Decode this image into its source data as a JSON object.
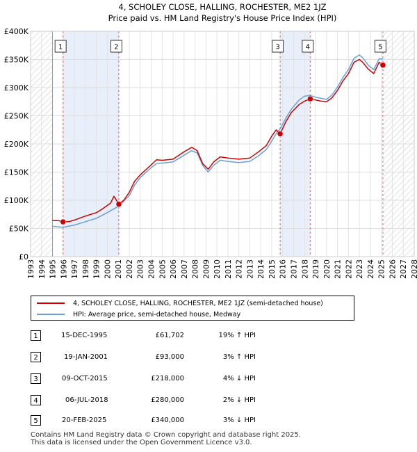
{
  "chart_data": {
    "type": "line",
    "title": "4, SCHOLEY CLOSE, HALLING, ROCHESTER, ME2 1JZ",
    "subtitle": "Price paid vs. HM Land Registry's House Price Index (HPI)",
    "xlim": [
      1993,
      2028
    ],
    "ylim": [
      0,
      400000
    ],
    "x_ticks": [
      "1993",
      "1994",
      "1995",
      "1996",
      "1997",
      "1998",
      "1999",
      "2000",
      "2001",
      "2002",
      "2003",
      "2004",
      "2005",
      "2006",
      "2007",
      "2008",
      "2009",
      "2010",
      "2011",
      "2012",
      "2013",
      "2014",
      "2015",
      "2016",
      "2017",
      "2018",
      "2019",
      "2020",
      "2021",
      "2022",
      "2023",
      "2024",
      "2025",
      "2026",
      "2027",
      "2028"
    ],
    "y_ticks": [
      {
        "value": 0,
        "label": "£0"
      },
      {
        "value": 50000,
        "label": "£50K"
      },
      {
        "value": 100000,
        "label": "£100K"
      },
      {
        "value": 150000,
        "label": "£150K"
      },
      {
        "value": 200000,
        "label": "£200K"
      },
      {
        "value": 250000,
        "label": "£250K"
      },
      {
        "value": 300000,
        "label": "£300K"
      },
      {
        "value": 350000,
        "label": "£350K"
      },
      {
        "value": 400000,
        "label": "£400K"
      }
    ],
    "hatched_before": 1995.0,
    "hatched_after": 2025.14,
    "shaded_periods": [
      [
        1995.96,
        2001.05
      ],
      [
        2015.77,
        2018.51
      ]
    ],
    "series": [
      {
        "name": "4, SCHOLEY CLOSE, HALLING, ROCHESTER, ME2 1JZ (semi-detached house)",
        "color": "#cc0000",
        "points": [
          [
            1995.0,
            64000
          ],
          [
            1995.5,
            64000
          ],
          [
            1995.96,
            61702
          ],
          [
            1996.5,
            62000
          ],
          [
            1997.0,
            65000
          ],
          [
            1998.0,
            72000
          ],
          [
            1999.0,
            78000
          ],
          [
            1999.5,
            84000
          ],
          [
            2000.3,
            95000
          ],
          [
            2000.6,
            107000
          ],
          [
            2001.05,
            93000
          ],
          [
            2001.5,
            100000
          ],
          [
            2002.0,
            114000
          ],
          [
            2002.5,
            134000
          ],
          [
            2003.0,
            145000
          ],
          [
            2004.0,
            163000
          ],
          [
            2004.5,
            172000
          ],
          [
            2005.0,
            171000
          ],
          [
            2006.0,
            173000
          ],
          [
            2007.0,
            186000
          ],
          [
            2007.7,
            194000
          ],
          [
            2008.2,
            188000
          ],
          [
            2008.7,
            165000
          ],
          [
            2009.2,
            155000
          ],
          [
            2009.7,
            168000
          ],
          [
            2010.3,
            177000
          ],
          [
            2011.0,
            175000
          ],
          [
            2012.0,
            173000
          ],
          [
            2013.0,
            175000
          ],
          [
            2013.8,
            186000
          ],
          [
            2014.5,
            197000
          ],
          [
            2015.0,
            214000
          ],
          [
            2015.4,
            225000
          ],
          [
            2015.77,
            218000
          ],
          [
            2016.3,
            240000
          ],
          [
            2016.8,
            256000
          ],
          [
            2017.5,
            270000
          ],
          [
            2018.0,
            276000
          ],
          [
            2018.51,
            280000
          ],
          [
            2019.0,
            278000
          ],
          [
            2019.5,
            276000
          ],
          [
            2020.0,
            275000
          ],
          [
            2020.5,
            282000
          ],
          [
            2021.0,
            295000
          ],
          [
            2021.5,
            312000
          ],
          [
            2022.0,
            325000
          ],
          [
            2022.5,
            345000
          ],
          [
            2023.0,
            350000
          ],
          [
            2023.3,
            345000
          ],
          [
            2023.8,
            333000
          ],
          [
            2024.3,
            325000
          ],
          [
            2024.8,
            345000
          ],
          [
            2025.14,
            340000
          ]
        ]
      },
      {
        "name": "HPI: Average price, semi-detached house, Medway",
        "color": "#6a9fd4",
        "points": [
          [
            1995.0,
            54000
          ],
          [
            1995.96,
            52000
          ],
          [
            1997.0,
            56000
          ],
          [
            1998.0,
            62000
          ],
          [
            1999.0,
            68000
          ],
          [
            2000.0,
            78000
          ],
          [
            2001.05,
            90000
          ],
          [
            2002.0,
            108000
          ],
          [
            2002.5,
            127000
          ],
          [
            2003.0,
            140000
          ],
          [
            2004.0,
            158000
          ],
          [
            2004.5,
            165000
          ],
          [
            2005.0,
            166000
          ],
          [
            2006.0,
            168000
          ],
          [
            2007.0,
            180000
          ],
          [
            2007.7,
            188000
          ],
          [
            2008.2,
            184000
          ],
          [
            2008.7,
            162000
          ],
          [
            2009.2,
            150000
          ],
          [
            2009.7,
            162000
          ],
          [
            2010.3,
            171000
          ],
          [
            2011.0,
            169000
          ],
          [
            2012.0,
            167000
          ],
          [
            2013.0,
            169000
          ],
          [
            2013.8,
            179000
          ],
          [
            2014.5,
            190000
          ],
          [
            2015.0,
            205000
          ],
          [
            2015.4,
            218000
          ],
          [
            2015.77,
            227000
          ],
          [
            2016.3,
            246000
          ],
          [
            2016.8,
            262000
          ],
          [
            2017.5,
            278000
          ],
          [
            2018.0,
            285000
          ],
          [
            2018.51,
            286000
          ],
          [
            2019.0,
            283000
          ],
          [
            2019.5,
            281000
          ],
          [
            2020.0,
            279000
          ],
          [
            2020.5,
            287000
          ],
          [
            2021.0,
            301000
          ],
          [
            2021.5,
            318000
          ],
          [
            2022.0,
            332000
          ],
          [
            2022.5,
            352000
          ],
          [
            2023.0,
            358000
          ],
          [
            2023.3,
            353000
          ],
          [
            2023.8,
            340000
          ],
          [
            2024.3,
            332000
          ],
          [
            2024.8,
            351000
          ],
          [
            2025.14,
            351000
          ]
        ]
      }
    ],
    "sales": [
      {
        "label": "1",
        "x": 1995.96,
        "y": 61702
      },
      {
        "label": "2",
        "x": 2001.05,
        "y": 93000
      },
      {
        "label": "3",
        "x": 2015.77,
        "y": 218000
      },
      {
        "label": "4",
        "x": 2018.51,
        "y": 280000
      },
      {
        "label": "5",
        "x": 2025.14,
        "y": 340000
      }
    ]
  },
  "legend": {
    "property_label": "4, SCHOLEY CLOSE, HALLING, ROCHESTER, ME2 1JZ (semi-detached house)",
    "hpi_label": "HPI: Average price, semi-detached house, Medway",
    "property_color": "#cc0000",
    "hpi_color": "#6a9fd4"
  },
  "transactions": [
    {
      "num": "1",
      "date": "15-DEC-1995",
      "price": "£61,702",
      "hpi": "19% ↑ HPI"
    },
    {
      "num": "2",
      "date": "19-JAN-2001",
      "price": "£93,000",
      "hpi": "3% ↑ HPI"
    },
    {
      "num": "3",
      "date": "09-OCT-2015",
      "price": "£218,000",
      "hpi": "4% ↓ HPI"
    },
    {
      "num": "4",
      "date": "06-JUL-2018",
      "price": "£280,000",
      "hpi": "2% ↓ HPI"
    },
    {
      "num": "5",
      "date": "20-FEB-2025",
      "price": "£340,000",
      "hpi": "3% ↓ HPI"
    }
  ],
  "footer": {
    "line1": "Contains HM Land Registry data © Crown copyright and database right 2025.",
    "line2": "This data is licensed under the Open Government Licence v3.0."
  }
}
